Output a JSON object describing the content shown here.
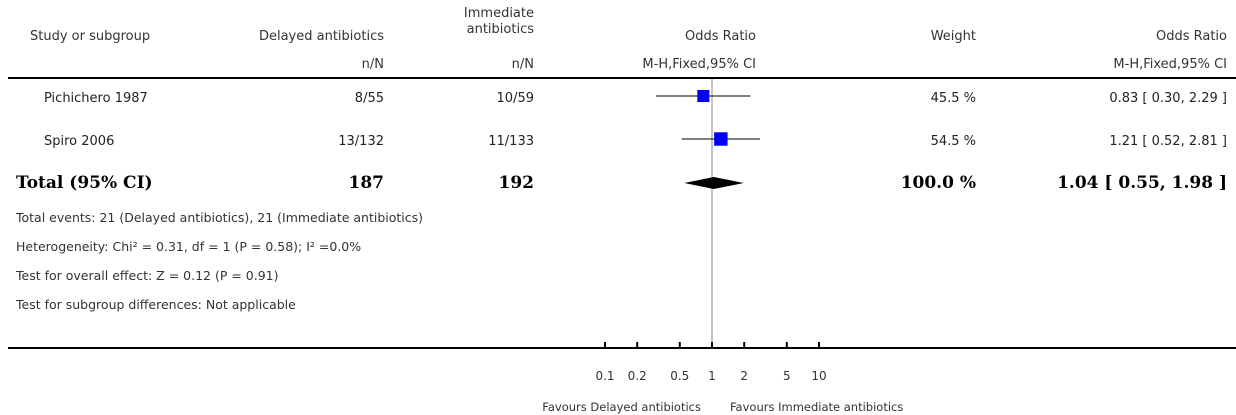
{
  "header": {
    "study": "Study or subgroup",
    "delayed": "Delayed antibiotics",
    "immediate": "Immediate\nantibiotics",
    "or_title": "Odds Ratio",
    "weight": "Weight",
    "or_right_title": "Odds Ratio",
    "nN_delayed": "n/N",
    "nN_immediate": "n/N",
    "method_plot": "M-H,Fixed,95% CI",
    "method_right": "M-H,Fixed,95% CI"
  },
  "studies": [
    {
      "name": "Pichichero 1987",
      "delayed": "8/55",
      "immediate": "10/59",
      "weight": "45.5 %",
      "ci_text": "0.83 [ 0.30, 2.29 ]"
    },
    {
      "name": "Spiro 2006",
      "delayed": "13/132",
      "immediate": "11/133",
      "weight": "54.5 %",
      "ci_text": "1.21 [ 0.52, 2.81 ]"
    }
  ],
  "total": {
    "label": "Total (95% CI)",
    "delayed": "187",
    "immediate": "192",
    "weight": "100.0 %",
    "ci_text": "1.04 [ 0.55, 1.98 ]"
  },
  "footer": {
    "events": "Total events: 21 (Delayed antibiotics), 21 (Immediate antibiotics)",
    "heterogeneity": "Heterogeneity: Chi² = 0.31, df = 1 (P = 0.58); I² =0.0%",
    "overall": "Test for overall effect: Z = 0.12 (P = 0.91)",
    "subgroup": "Test for subgroup differences: Not applicable"
  },
  "axis": {
    "favours_left": "Favours Delayed antibiotics",
    "favours_right": "Favours Immediate antibiotics"
  },
  "chart_data": {
    "type": "scatter",
    "scale": "log",
    "xlim": [
      0.1,
      10
    ],
    "ticks": [
      0.1,
      0.2,
      0.5,
      1,
      2,
      5,
      10
    ],
    "tick_labels": [
      "0.1",
      "0.2",
      "0.5",
      "1",
      "2",
      "5",
      "10"
    ],
    "reference_line": 1,
    "points": [
      {
        "name": "Pichichero 1987",
        "or": 0.83,
        "lo": 0.3,
        "hi": 2.29,
        "weight": 45.5
      },
      {
        "name": "Spiro 2006",
        "or": 1.21,
        "lo": 0.52,
        "hi": 2.81,
        "weight": 54.5
      }
    ],
    "summary": {
      "or": 1.04,
      "lo": 0.55,
      "hi": 1.98
    },
    "colors": {
      "marker": "#0000ee",
      "diamond": "#000000"
    }
  }
}
